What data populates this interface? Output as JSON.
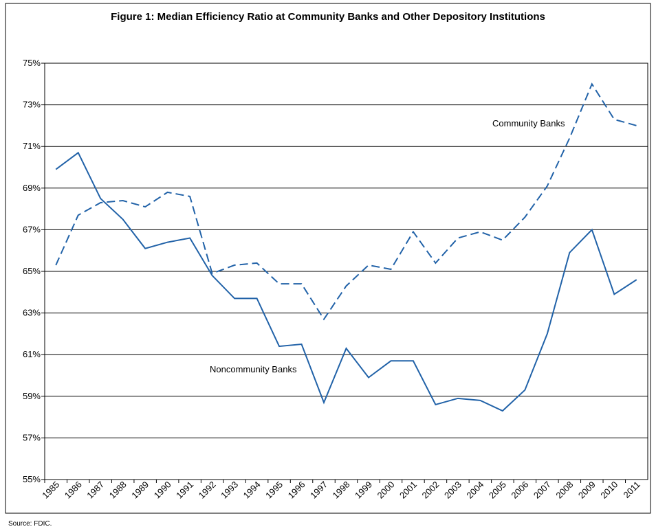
{
  "chart_data": {
    "type": "line",
    "title": "Figure 1: Median Efficiency Ratio at Community Banks and Other Depository Institutions",
    "source": "Source: FDIC.",
    "categories": [
      "1985",
      "1986",
      "1987",
      "1988",
      "1989",
      "1990",
      "1991",
      "1992",
      "1993",
      "1994",
      "1995",
      "1996",
      "1997",
      "1998",
      "1999",
      "2000",
      "2001",
      "2002",
      "2003",
      "2004",
      "2005",
      "2006",
      "2007",
      "2008",
      "2009",
      "2010",
      "2011"
    ],
    "series": [
      {
        "name": "Community Banks",
        "color": "#2162a8",
        "line_style": "dashed",
        "values": [
          65.3,
          67.7,
          68.3,
          68.4,
          68.1,
          68.8,
          68.6,
          64.9,
          65.3,
          65.4,
          64.4,
          64.4,
          62.7,
          64.3,
          65.3,
          65.1,
          66.9,
          65.4,
          66.6,
          66.9,
          66.5,
          67.6,
          69.1,
          71.4,
          74.0,
          72.3,
          72.0
        ]
      },
      {
        "name": "Noncommunity Banks",
        "color": "#2162a8",
        "line_style": "solid",
        "values": [
          69.9,
          70.7,
          68.5,
          67.5,
          66.1,
          66.4,
          66.6,
          64.8,
          63.7,
          63.7,
          61.4,
          61.5,
          58.7,
          61.3,
          59.9,
          60.7,
          60.7,
          58.6,
          58.9,
          58.8,
          58.3,
          59.3,
          62.0,
          65.9,
          67.0,
          63.9,
          64.6
        ]
      }
    ],
    "ylim": [
      55,
      75
    ],
    "yticks": [
      {
        "value": 55,
        "label": "55%"
      },
      {
        "value": 57,
        "label": "57%"
      },
      {
        "value": 59,
        "label": "59%"
      },
      {
        "value": 61,
        "label": "61%"
      },
      {
        "value": 63,
        "label": "63%"
      },
      {
        "value": 65,
        "label": "65%"
      },
      {
        "value": 67,
        "label": "67%"
      },
      {
        "value": 69,
        "label": "69%"
      },
      {
        "value": 71,
        "label": "71%"
      },
      {
        "value": 73,
        "label": "73%"
      },
      {
        "value": 75,
        "label": "75%"
      }
    ],
    "grid": true
  }
}
